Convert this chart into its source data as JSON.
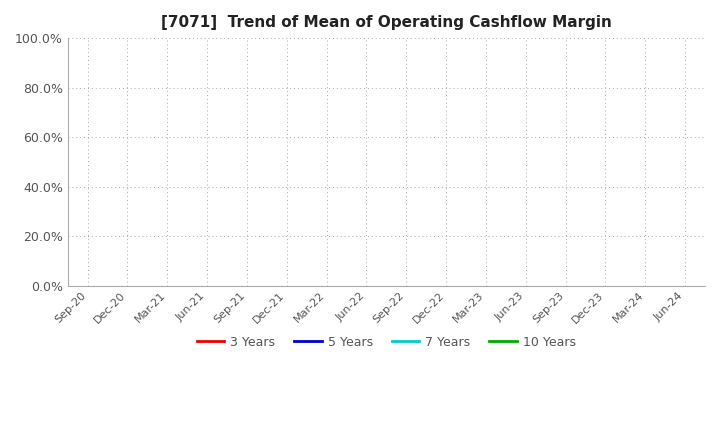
{
  "title": "[7071]  Trend of Mean of Operating Cashflow Margin",
  "title_fontsize": 11,
  "title_fontweight": "bold",
  "background_color": "#ffffff",
  "plot_bg_color": "#ffffff",
  "ylim": [
    0.0,
    1.0
  ],
  "yticks": [
    0.0,
    0.2,
    0.4,
    0.6,
    0.8,
    1.0
  ],
  "ytick_labels": [
    "0.0%",
    "20.0%",
    "40.0%",
    "60.0%",
    "80.0%",
    "100.0%"
  ],
  "xtick_labels": [
    "Sep-20",
    "Dec-20",
    "Mar-21",
    "Jun-21",
    "Sep-21",
    "Dec-21",
    "Mar-22",
    "Jun-22",
    "Sep-22",
    "Dec-22",
    "Mar-23",
    "Jun-23",
    "Sep-23",
    "Dec-23",
    "Mar-24",
    "Jun-24"
  ],
  "grid_color": "#aaaaaa",
  "legend_entries": [
    {
      "label": "3 Years",
      "color": "#ee0000"
    },
    {
      "label": "5 Years",
      "color": "#0000cc"
    },
    {
      "label": "7 Years",
      "color": "#00cccc"
    },
    {
      "label": "10 Years",
      "color": "#00aa00"
    }
  ],
  "spine_color": "#aaaaaa",
  "tick_color": "#555555",
  "label_fontsize": 9,
  "xtick_fontsize": 8
}
